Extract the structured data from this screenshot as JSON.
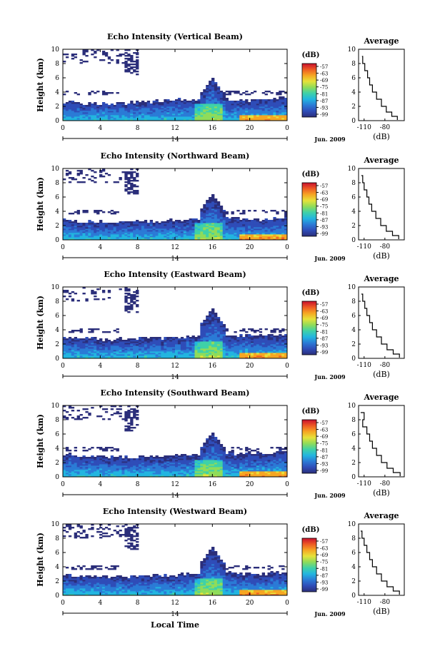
{
  "figure": {
    "xlabel": "Local Time",
    "date_label": "Jun. 2009",
    "day_label": "14",
    "ylabel": "Height (km)",
    "colorbar_unit": "(dB)",
    "colorbar_ticks": [
      "-57",
      "-63",
      "-69",
      "-75",
      "-81",
      "-87",
      "-93",
      "-99"
    ],
    "x_ticks": [
      "0",
      "4",
      "8",
      "12",
      "16",
      "20",
      "0"
    ],
    "y_ticks": [
      "0",
      "2",
      "4",
      "6",
      "8",
      "10"
    ],
    "avg_title": "Average",
    "avg_xlabel": "(dB)",
    "avg_x_ticks": [
      "-110",
      "-80"
    ]
  },
  "colors": {
    "colormap": [
      "#2b2e7a",
      "#2f4db8",
      "#2b7bd6",
      "#22b5e0",
      "#3fd1a8",
      "#8fdc5a",
      "#e6e23a",
      "#f6a623",
      "#ee5a24",
      "#c8102e"
    ],
    "line": "#000000"
  },
  "chart_data": [
    {
      "type": "heatmap",
      "title": "Echo Intensity (Vertical Beam)",
      "xlabel": "Local Time",
      "ylabel": "Height (km)",
      "x_range_hours": [
        0,
        24
      ],
      "ylim": [
        0,
        10
      ],
      "color_range_db": [
        -99,
        -57
      ],
      "boundary_layer_top_km": [
        2.6,
        2.5,
        2.4,
        2.6,
        2.8,
        3.0,
        3.2,
        3.0,
        2.8,
        3.4
      ],
      "deep_echo_at_hours": 16,
      "deep_echo_top_km": 6.0,
      "upper_echo_km": [
        8,
        10
      ],
      "average_profile": {
        "title": "Average",
        "xlabel": "(dB)",
        "xlim": [
          -118,
          -52
        ],
        "ylim": [
          0,
          10
        ],
        "x_db": [
          -113,
          -112,
          -109,
          -105,
          -102,
          -98,
          -92,
          -85,
          -78,
          -70,
          -62
        ],
        "height_km": [
          9.0,
          8.0,
          7.0,
          6.0,
          5.0,
          4.0,
          3.0,
          2.0,
          1.2,
          0.6,
          0.1
        ]
      }
    },
    {
      "type": "heatmap",
      "title": "Echo Intensity (Northward Beam)",
      "xlabel": "Local Time",
      "ylabel": "Height (km)",
      "x_range_hours": [
        0,
        24
      ],
      "ylim": [
        0,
        10
      ],
      "color_range_db": [
        -99,
        -57
      ],
      "boundary_layer_top_km": [
        2.8,
        2.6,
        2.5,
        2.6,
        2.7,
        2.9,
        3.1,
        3.0,
        2.9,
        3.3
      ],
      "deep_echo_at_hours": 16,
      "deep_echo_top_km": 6.5,
      "upper_echo_km": [
        8,
        10
      ],
      "average_profile": {
        "title": "Average",
        "xlabel": "(dB)",
        "xlim": [
          -118,
          -52
        ],
        "ylim": [
          0,
          10
        ],
        "x_db": [
          -114,
          -112,
          -110,
          -106,
          -103,
          -99,
          -93,
          -86,
          -78,
          -69,
          -60
        ],
        "height_km": [
          9.0,
          8.0,
          7.0,
          6.0,
          5.0,
          4.0,
          3.0,
          2.0,
          1.2,
          0.6,
          0.1
        ]
      }
    },
    {
      "type": "heatmap",
      "title": "Echo Intensity (Eastward Beam)",
      "xlabel": "Local Time",
      "ylabel": "Height (km)",
      "x_range_hours": [
        0,
        24
      ],
      "ylim": [
        0,
        10
      ],
      "color_range_db": [
        -99,
        -57
      ],
      "boundary_layer_top_km": [
        3.0,
        2.8,
        2.7,
        2.8,
        2.9,
        3.1,
        3.2,
        3.2,
        3.4,
        3.5
      ],
      "deep_echo_at_hours": 16,
      "deep_echo_top_km": 7.0,
      "upper_echo_km": [
        8,
        10
      ],
      "average_profile": {
        "title": "Average",
        "xlabel": "(dB)",
        "xlim": [
          -118,
          -52
        ],
        "ylim": [
          0,
          10
        ],
        "x_db": [
          -114,
          -112,
          -109,
          -106,
          -102,
          -98,
          -92,
          -85,
          -77,
          -68,
          -59
        ],
        "height_km": [
          9.0,
          8.0,
          7.0,
          6.0,
          5.0,
          4.0,
          3.0,
          2.0,
          1.2,
          0.6,
          0.1
        ]
      }
    },
    {
      "type": "heatmap",
      "title": "Echo Intensity (Southward Beam)",
      "xlabel": "Local Time",
      "ylabel": "Height (km)",
      "x_range_hours": [
        0,
        24
      ],
      "ylim": [
        0,
        10
      ],
      "color_range_db": [
        -99,
        -57
      ],
      "boundary_layer_top_km": [
        3.2,
        3.0,
        2.8,
        2.7,
        2.8,
        3.0,
        3.2,
        3.3,
        3.3,
        3.6
      ],
      "deep_echo_at_hours": 16,
      "deep_echo_top_km": 6.3,
      "upper_echo_km": [
        8,
        10
      ],
      "average_profile": {
        "title": "Average",
        "xlabel": "(dB)",
        "xlim": [
          -118,
          -52
        ],
        "ylim": [
          0,
          10
        ],
        "x_db": [
          -115,
          -110,
          -112,
          -106,
          -102,
          -98,
          -92,
          -85,
          -77,
          -68,
          -58
        ],
        "height_km": [
          9.0,
          8.0,
          7.0,
          6.0,
          5.0,
          4.0,
          3.0,
          2.0,
          1.2,
          0.6,
          0.1
        ]
      }
    },
    {
      "type": "heatmap",
      "title": "Echo Intensity (Westward Beam)",
      "xlabel": "Local Time",
      "ylabel": "Height (km)",
      "x_range_hours": [
        0,
        24
      ],
      "ylim": [
        0,
        10
      ],
      "color_range_db": [
        -99,
        -57
      ],
      "boundary_layer_top_km": [
        2.9,
        2.7,
        2.6,
        2.7,
        2.8,
        3.0,
        3.1,
        3.1,
        3.0,
        3.4
      ],
      "deep_echo_at_hours": 16,
      "deep_echo_top_km": 6.8,
      "upper_echo_km": [
        8,
        10
      ],
      "average_profile": {
        "title": "Average",
        "xlabel": "(dB)",
        "xlim": [
          -118,
          -52
        ],
        "ylim": [
          0,
          10
        ],
        "x_db": [
          -115,
          -113,
          -110,
          -106,
          -102,
          -98,
          -92,
          -85,
          -77,
          -68,
          -59
        ],
        "height_km": [
          9.0,
          8.0,
          7.0,
          6.0,
          5.0,
          4.0,
          3.0,
          2.0,
          1.2,
          0.6,
          0.1
        ]
      }
    }
  ]
}
